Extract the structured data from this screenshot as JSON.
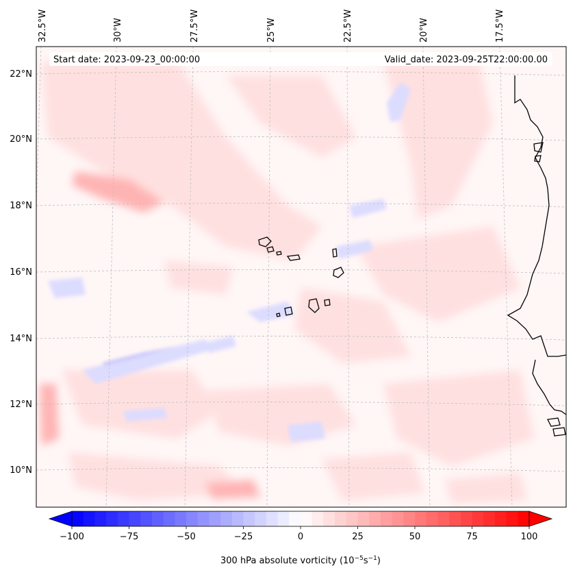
{
  "map": {
    "start_date_text": "Start date: 2023-09-23_00:00:00",
    "valid_date_text": "Valid_date: 2023-09-25T22:00:00.00",
    "lon_labels": [
      "32.5°W",
      "30°W",
      "27.5°W",
      "25°W",
      "22.5°W",
      "20°W",
      "17.5°W"
    ],
    "lat_labels": [
      "22°N",
      "20°N",
      "18°N",
      "16°N",
      "14°N",
      "12°N",
      "10°N"
    ],
    "field_colors": {
      "neg_strong": "#2a2aff",
      "neg_mid": "#a0a0ff",
      "neg_light": "#dcdcff",
      "pos_light": "#ffe0e0",
      "pos_mid": "#ffb4b4",
      "pos_strong": "#ff7070"
    },
    "coastline_color": "#000000",
    "gridline_color": "#bdbdbd"
  },
  "colorbar": {
    "label_text": "300 hPa absolute vorticity (10",
    "label_exp1": "−5",
    "label_unit": "s",
    "label_exp2": "−1",
    "label_close": ")",
    "vmin": -100,
    "vmax": 100,
    "step": 5,
    "tick_values": [
      -100,
      -75,
      -50,
      -25,
      0,
      25,
      50,
      75,
      100
    ],
    "tick_labels": [
      "−100",
      "−75",
      "−50",
      "−25",
      "0",
      "25",
      "50",
      "75",
      "100"
    ],
    "extend": "both",
    "cmap": "bwr"
  }
}
